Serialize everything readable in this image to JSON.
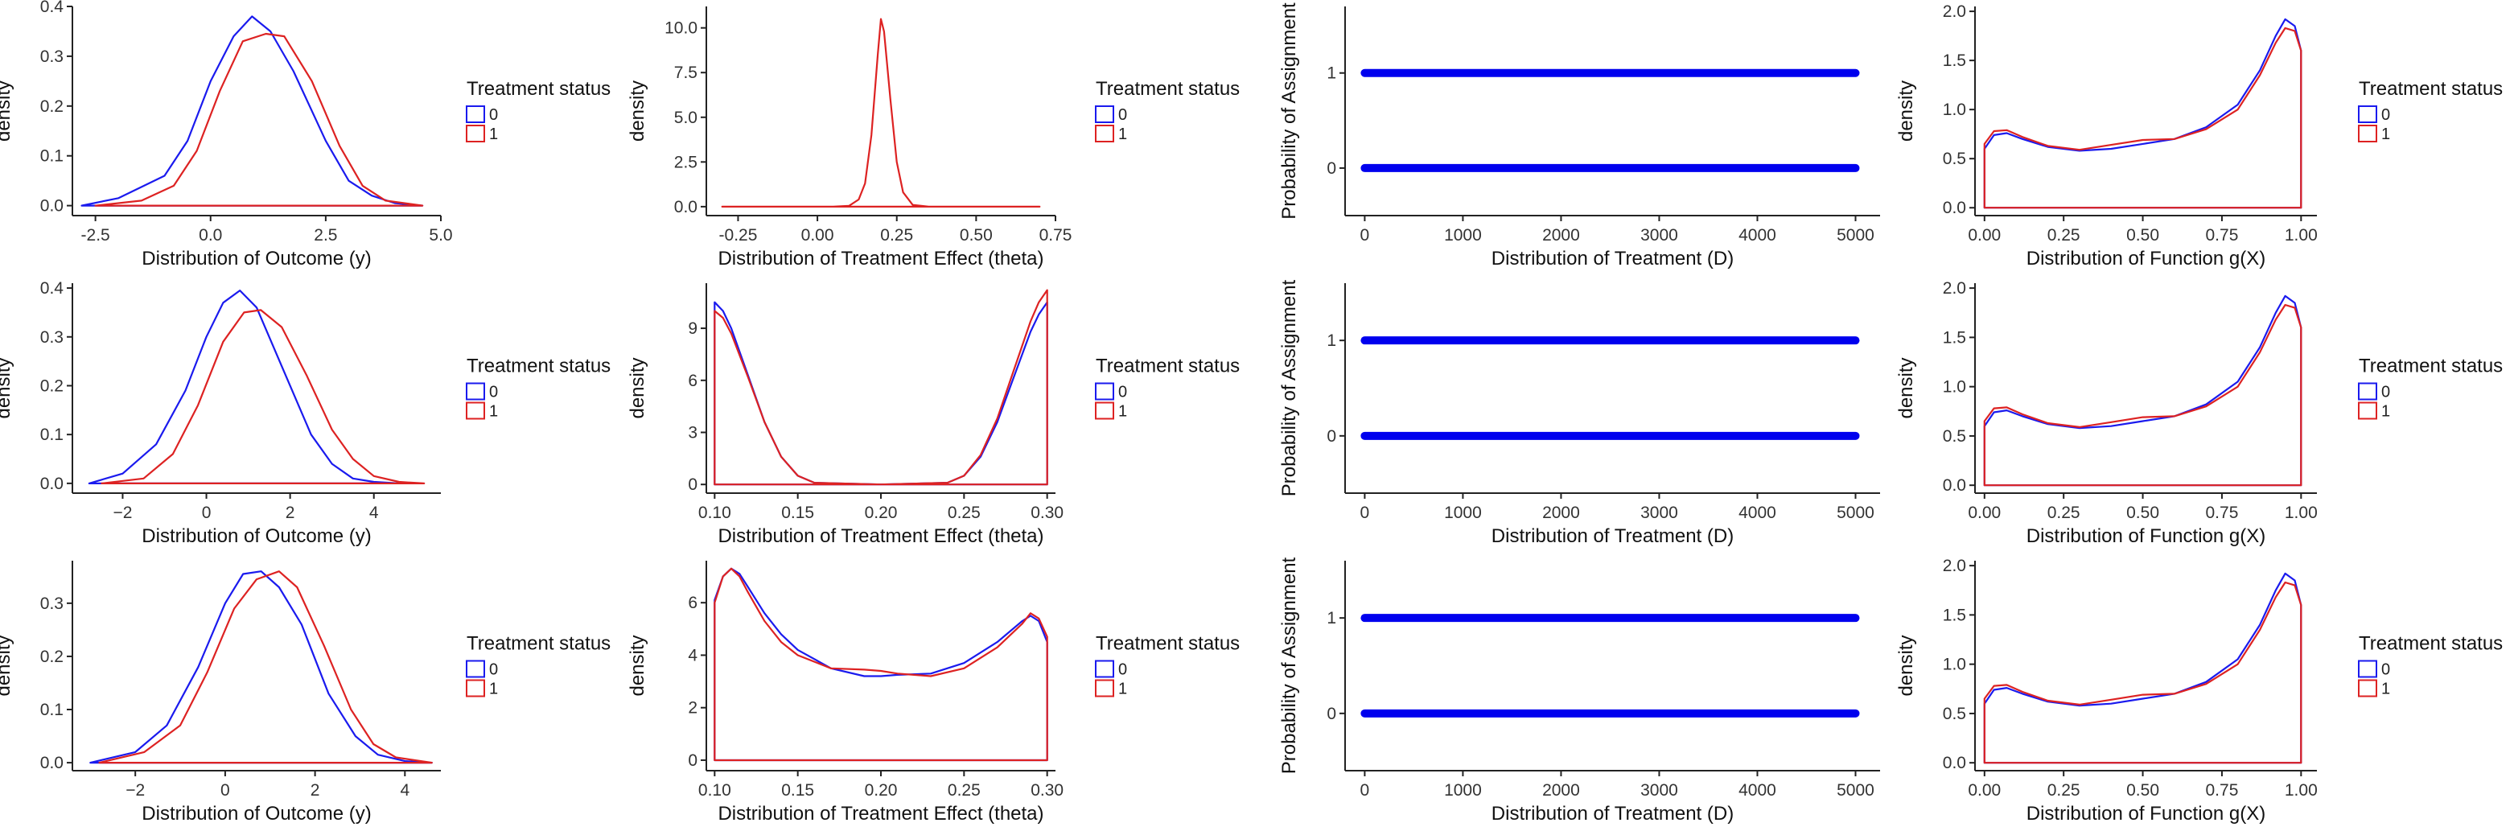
{
  "colors": {
    "control": "#1a1aee",
    "treated": "#dd2222",
    "assignment": "#0000ee"
  },
  "legend": {
    "title": "Treatment status",
    "labels": [
      "0",
      "1"
    ]
  },
  "chart_data": [
    {
      "type": "line",
      "subtype": "density",
      "xlabel": "Distribution of Outcome (y)",
      "ylabel": "density",
      "xlim": [
        -3.0,
        5.0
      ],
      "ylim": [
        -0.02,
        0.4
      ],
      "xticks": [
        -2.5,
        0.0,
        2.5,
        5.0
      ],
      "xtick_labels": [
        "-2.5",
        "0.0",
        "2.5",
        "5.0"
      ],
      "yticks": [
        0.0,
        0.1,
        0.2,
        0.3,
        0.4
      ],
      "ytick_labels": [
        "0.0",
        "0.1",
        "0.2",
        "0.3",
        "0.4"
      ],
      "series": [
        {
          "name": "0",
          "x": [
            -2.8,
            -2.0,
            -1.0,
            -0.5,
            0.0,
            0.5,
            0.9,
            1.3,
            1.8,
            2.5,
            3.0,
            3.5,
            4.0,
            4.6
          ],
          "y": [
            0.0,
            0.015,
            0.06,
            0.13,
            0.25,
            0.34,
            0.38,
            0.35,
            0.27,
            0.13,
            0.05,
            0.02,
            0.005,
            0.0
          ]
        },
        {
          "name": "1",
          "x": [
            -2.5,
            -1.5,
            -0.8,
            -0.3,
            0.2,
            0.7,
            1.2,
            1.6,
            2.2,
            2.8,
            3.3,
            3.8,
            4.6
          ],
          "y": [
            0.0,
            0.01,
            0.04,
            0.11,
            0.23,
            0.33,
            0.345,
            0.34,
            0.25,
            0.12,
            0.04,
            0.01,
            0.0
          ]
        }
      ]
    },
    {
      "type": "line",
      "subtype": "density",
      "xlabel": "Distribution of Treatment Effect (theta)",
      "ylabel": "density",
      "xlim": [
        -0.35,
        0.75
      ],
      "ylim": [
        -0.5,
        11.2
      ],
      "xticks": [
        -0.25,
        0.0,
        0.25,
        0.5,
        0.75
      ],
      "xtick_labels": [
        "-0.25",
        "0.00",
        "0.25",
        "0.50",
        "0.75"
      ],
      "yticks": [
        0.0,
        2.5,
        5.0,
        7.5,
        10.0
      ],
      "ytick_labels": [
        "0.0",
        "2.5",
        "5.0",
        "7.5",
        "10.0"
      ],
      "series": [
        {
          "name": "1",
          "x": [
            -0.3,
            0.05,
            0.1,
            0.13,
            0.15,
            0.17,
            0.19,
            0.2,
            0.21,
            0.23,
            0.25,
            0.27,
            0.3,
            0.35,
            0.7
          ],
          "y": [
            0.0,
            0.0,
            0.05,
            0.4,
            1.3,
            4.0,
            8.5,
            10.5,
            9.8,
            6.0,
            2.5,
            0.8,
            0.1,
            0.0,
            0.0
          ]
        }
      ]
    },
    {
      "type": "scatter",
      "xlabel": "Distribution of Treatment (D)",
      "ylabel": "Probability of Assignment",
      "xlim": [
        -200,
        5250
      ],
      "ylim": [
        -0.5,
        1.7
      ],
      "xticks": [
        0,
        1000,
        2000,
        3000,
        4000,
        5000
      ],
      "xtick_labels": [
        "0",
        "1000",
        "2000",
        "3000",
        "4000",
        "5000"
      ],
      "yticks": [
        0,
        1
      ],
      "ytick_labels": [
        "0",
        "1"
      ],
      "series": [
        {
          "x_range": [
            0,
            5000
          ],
          "y_levels": [
            0,
            1
          ]
        }
      ]
    },
    {
      "type": "line",
      "subtype": "density",
      "xlabel": "Distribution of Function g(X)",
      "ylabel": "density",
      "xlim": [
        -0.03,
        1.05
      ],
      "ylim": [
        -0.08,
        2.05
      ],
      "xticks": [
        0.0,
        0.25,
        0.5,
        0.75,
        1.0
      ],
      "xtick_labels": [
        "0.00",
        "0.25",
        "0.50",
        "0.75",
        "1.00"
      ],
      "yticks": [
        0.0,
        0.5,
        1.0,
        1.5,
        2.0
      ],
      "ytick_labels": [
        "0.0",
        "0.5",
        "1.0",
        "1.5",
        "2.0"
      ],
      "series": [
        {
          "name": "0",
          "x": [
            0.0,
            0.03,
            0.07,
            0.12,
            0.2,
            0.3,
            0.4,
            0.5,
            0.6,
            0.7,
            0.8,
            0.87,
            0.92,
            0.95,
            0.98,
            1.0
          ],
          "y": [
            0.6,
            0.74,
            0.76,
            0.7,
            0.62,
            0.58,
            0.6,
            0.65,
            0.7,
            0.82,
            1.05,
            1.4,
            1.75,
            1.92,
            1.85,
            1.6
          ]
        },
        {
          "name": "1",
          "x": [
            0.0,
            0.03,
            0.07,
            0.12,
            0.2,
            0.3,
            0.4,
            0.5,
            0.6,
            0.7,
            0.8,
            0.87,
            0.92,
            0.95,
            0.98,
            1.0
          ],
          "y": [
            0.65,
            0.78,
            0.79,
            0.72,
            0.63,
            0.59,
            0.64,
            0.69,
            0.7,
            0.8,
            1.0,
            1.35,
            1.68,
            1.83,
            1.8,
            1.6
          ]
        }
      ]
    },
    {
      "type": "line",
      "subtype": "density",
      "xlabel": "Distribution of Outcome (y)",
      "ylabel": "density",
      "xlim": [
        -3.2,
        5.6
      ],
      "ylim": [
        -0.02,
        0.41
      ],
      "xticks": [
        -2,
        0,
        2,
        4
      ],
      "xtick_labels": [
        "−2",
        "0",
        "2",
        "4"
      ],
      "yticks": [
        0.0,
        0.1,
        0.2,
        0.3,
        0.4
      ],
      "ytick_labels": [
        "0.0",
        "0.1",
        "0.2",
        "0.3",
        "0.4"
      ],
      "series": [
        {
          "name": "0",
          "x": [
            -2.8,
            -2.0,
            -1.2,
            -0.5,
            0.0,
            0.4,
            0.8,
            1.2,
            1.8,
            2.5,
            3.0,
            3.5,
            4.0,
            4.6
          ],
          "y": [
            0.0,
            0.02,
            0.08,
            0.19,
            0.3,
            0.37,
            0.395,
            0.36,
            0.24,
            0.1,
            0.04,
            0.01,
            0.003,
            0.0
          ]
        },
        {
          "name": "1",
          "x": [
            -2.5,
            -1.5,
            -0.8,
            -0.2,
            0.4,
            0.9,
            1.3,
            1.8,
            2.4,
            3.0,
            3.5,
            4.0,
            4.6,
            5.2
          ],
          "y": [
            0.0,
            0.01,
            0.06,
            0.16,
            0.29,
            0.35,
            0.355,
            0.32,
            0.22,
            0.11,
            0.05,
            0.015,
            0.003,
            0.0
          ]
        }
      ]
    },
    {
      "type": "line",
      "subtype": "density",
      "xlabel": "Distribution of Treatment Effect (theta)",
      "ylabel": "density",
      "xlim": [
        0.095,
        0.305
      ],
      "ylim": [
        -0.5,
        11.6
      ],
      "xticks": [
        0.1,
        0.15,
        0.2,
        0.25,
        0.3
      ],
      "xtick_labels": [
        "0.10",
        "0.15",
        "0.20",
        "0.25",
        "0.30"
      ],
      "yticks": [
        0,
        3,
        6,
        9
      ],
      "ytick_labels": [
        "0",
        "3",
        "6",
        "9"
      ],
      "series": [
        {
          "name": "0",
          "x": [
            0.1,
            0.105,
            0.11,
            0.12,
            0.13,
            0.14,
            0.15,
            0.16,
            0.2,
            0.24,
            0.25,
            0.26,
            0.27,
            0.28,
            0.29,
            0.295,
            0.3
          ],
          "y": [
            10.5,
            10.0,
            9.0,
            6.3,
            3.6,
            1.6,
            0.5,
            0.1,
            0.0,
            0.1,
            0.5,
            1.6,
            3.6,
            6.2,
            8.8,
            9.8,
            10.5
          ]
        },
        {
          "name": "1",
          "x": [
            0.1,
            0.105,
            0.11,
            0.12,
            0.13,
            0.14,
            0.15,
            0.16,
            0.2,
            0.24,
            0.25,
            0.26,
            0.27,
            0.28,
            0.29,
            0.295,
            0.3
          ],
          "y": [
            10.0,
            9.6,
            8.7,
            6.2,
            3.6,
            1.6,
            0.5,
            0.1,
            0.0,
            0.1,
            0.5,
            1.7,
            3.8,
            6.6,
            9.4,
            10.5,
            11.2
          ]
        }
      ]
    },
    {
      "type": "scatter",
      "xlabel": "Distribution of Treatment (D)",
      "ylabel": "Probability of Assignment",
      "xlim": [
        -200,
        5250
      ],
      "ylim": [
        -0.6,
        1.6
      ],
      "xticks": [
        0,
        1000,
        2000,
        3000,
        4000,
        5000
      ],
      "xtick_labels": [
        "0",
        "1000",
        "2000",
        "3000",
        "4000",
        "5000"
      ],
      "yticks": [
        0,
        1
      ],
      "ytick_labels": [
        "0",
        "1"
      ],
      "series": [
        {
          "x_range": [
            0,
            5000
          ],
          "y_levels": [
            0,
            1
          ]
        }
      ]
    },
    {
      "type": "line",
      "subtype": "density",
      "xlabel": "Distribution of Function g(X)",
      "ylabel": "density",
      "xlim": [
        -0.03,
        1.05
      ],
      "ylim": [
        -0.08,
        2.05
      ],
      "xticks": [
        0.0,
        0.25,
        0.5,
        0.75,
        1.0
      ],
      "xtick_labels": [
        "0.00",
        "0.25",
        "0.50",
        "0.75",
        "1.00"
      ],
      "yticks": [
        0.0,
        0.5,
        1.0,
        1.5,
        2.0
      ],
      "ytick_labels": [
        "0.0",
        "0.5",
        "1.0",
        "1.5",
        "2.0"
      ],
      "series": [
        {
          "name": "0",
          "x": [
            0.0,
            0.03,
            0.07,
            0.12,
            0.2,
            0.3,
            0.4,
            0.5,
            0.6,
            0.7,
            0.8,
            0.87,
            0.92,
            0.95,
            0.98,
            1.0
          ],
          "y": [
            0.6,
            0.74,
            0.76,
            0.7,
            0.62,
            0.58,
            0.6,
            0.65,
            0.7,
            0.82,
            1.05,
            1.4,
            1.75,
            1.92,
            1.85,
            1.6
          ]
        },
        {
          "name": "1",
          "x": [
            0.0,
            0.03,
            0.07,
            0.12,
            0.2,
            0.3,
            0.4,
            0.5,
            0.6,
            0.7,
            0.8,
            0.87,
            0.92,
            0.95,
            0.98,
            1.0
          ],
          "y": [
            0.65,
            0.78,
            0.79,
            0.72,
            0.63,
            0.59,
            0.64,
            0.69,
            0.7,
            0.8,
            1.0,
            1.35,
            1.68,
            1.83,
            1.8,
            1.6
          ]
        }
      ]
    },
    {
      "type": "line",
      "subtype": "density",
      "xlabel": "Distribution of Outcome (y)",
      "ylabel": "density",
      "xlim": [
        -3.4,
        4.8
      ],
      "ylim": [
        -0.015,
        0.38
      ],
      "xticks": [
        -2,
        0,
        2,
        4
      ],
      "xtick_labels": [
        "−2",
        "0",
        "2",
        "4"
      ],
      "yticks": [
        0.0,
        0.1,
        0.2,
        0.3
      ],
      "ytick_labels": [
        "0.0",
        "0.1",
        "0.2",
        "0.3"
      ],
      "series": [
        {
          "name": "0",
          "x": [
            -3.0,
            -2.0,
            -1.3,
            -0.6,
            0.0,
            0.4,
            0.8,
            1.2,
            1.7,
            2.3,
            2.9,
            3.4,
            4.0,
            4.6
          ],
          "y": [
            0.0,
            0.02,
            0.07,
            0.18,
            0.3,
            0.355,
            0.36,
            0.33,
            0.26,
            0.13,
            0.05,
            0.015,
            0.003,
            0.0
          ]
        },
        {
          "name": "1",
          "x": [
            -2.8,
            -1.8,
            -1.0,
            -0.4,
            0.2,
            0.7,
            1.2,
            1.6,
            2.2,
            2.8,
            3.3,
            3.8,
            4.6
          ],
          "y": [
            0.0,
            0.02,
            0.07,
            0.17,
            0.29,
            0.345,
            0.36,
            0.33,
            0.22,
            0.1,
            0.035,
            0.01,
            0.0
          ]
        }
      ]
    },
    {
      "type": "line",
      "subtype": "density",
      "xlabel": "Distribution of Treatment Effect (theta)",
      "ylabel": "density",
      "xlim": [
        0.095,
        0.305
      ],
      "ylim": [
        -0.4,
        7.6
      ],
      "xticks": [
        0.1,
        0.15,
        0.2,
        0.25,
        0.3
      ],
      "xtick_labels": [
        "0.10",
        "0.15",
        "0.20",
        "0.25",
        "0.30"
      ],
      "yticks": [
        0,
        2,
        4,
        6
      ],
      "ytick_labels": [
        "0",
        "2",
        "4",
        "6"
      ],
      "series": [
        {
          "name": "0",
          "x": [
            0.1,
            0.105,
            0.11,
            0.115,
            0.12,
            0.13,
            0.14,
            0.15,
            0.17,
            0.19,
            0.2,
            0.21,
            0.23,
            0.25,
            0.27,
            0.285,
            0.29,
            0.295,
            0.3
          ],
          "y": [
            6.1,
            7.0,
            7.3,
            7.1,
            6.6,
            5.6,
            4.8,
            4.2,
            3.5,
            3.2,
            3.2,
            3.25,
            3.3,
            3.7,
            4.5,
            5.3,
            5.5,
            5.3,
            4.5
          ]
        },
        {
          "name": "1",
          "x": [
            0.1,
            0.105,
            0.11,
            0.115,
            0.12,
            0.13,
            0.14,
            0.15,
            0.17,
            0.19,
            0.2,
            0.21,
            0.23,
            0.25,
            0.27,
            0.285,
            0.29,
            0.295,
            0.3
          ],
          "y": [
            6.0,
            7.0,
            7.3,
            7.0,
            6.4,
            5.3,
            4.5,
            4.0,
            3.5,
            3.45,
            3.4,
            3.3,
            3.2,
            3.5,
            4.3,
            5.2,
            5.6,
            5.4,
            4.7
          ]
        }
      ]
    },
    {
      "type": "scatter",
      "xlabel": "Distribution of Treatment (D)",
      "ylabel": "Probability of Assignment",
      "xlim": [
        -200,
        5250
      ],
      "ylim": [
        -0.6,
        1.6
      ],
      "xticks": [
        0,
        1000,
        2000,
        3000,
        4000,
        5000
      ],
      "xtick_labels": [
        "0",
        "1000",
        "2000",
        "3000",
        "4000",
        "5000"
      ],
      "yticks": [
        0,
        1
      ],
      "ytick_labels": [
        "0",
        "1"
      ],
      "series": [
        {
          "x_range": [
            0,
            5000
          ],
          "y_levels": [
            0,
            1
          ]
        }
      ]
    },
    {
      "type": "line",
      "subtype": "density",
      "xlabel": "Distribution of Function g(X)",
      "ylabel": "density",
      "xlim": [
        -0.03,
        1.05
      ],
      "ylim": [
        -0.08,
        2.05
      ],
      "xticks": [
        0.0,
        0.25,
        0.5,
        0.75,
        1.0
      ],
      "xtick_labels": [
        "0.00",
        "0.25",
        "0.50",
        "0.75",
        "1.00"
      ],
      "yticks": [
        0.0,
        0.5,
        1.0,
        1.5,
        2.0
      ],
      "ytick_labels": [
        "0.0",
        "0.5",
        "1.0",
        "1.5",
        "2.0"
      ],
      "series": [
        {
          "name": "0",
          "x": [
            0.0,
            0.03,
            0.07,
            0.12,
            0.2,
            0.3,
            0.4,
            0.5,
            0.6,
            0.7,
            0.8,
            0.87,
            0.92,
            0.95,
            0.98,
            1.0
          ],
          "y": [
            0.6,
            0.74,
            0.76,
            0.7,
            0.62,
            0.58,
            0.6,
            0.65,
            0.7,
            0.82,
            1.05,
            1.4,
            1.75,
            1.92,
            1.85,
            1.6
          ]
        },
        {
          "name": "1",
          "x": [
            0.0,
            0.03,
            0.07,
            0.12,
            0.2,
            0.3,
            0.4,
            0.5,
            0.6,
            0.7,
            0.8,
            0.87,
            0.92,
            0.95,
            0.98,
            1.0
          ],
          "y": [
            0.65,
            0.78,
            0.79,
            0.72,
            0.63,
            0.59,
            0.64,
            0.69,
            0.7,
            0.8,
            1.0,
            1.35,
            1.68,
            1.83,
            1.8,
            1.6
          ]
        }
      ]
    }
  ]
}
